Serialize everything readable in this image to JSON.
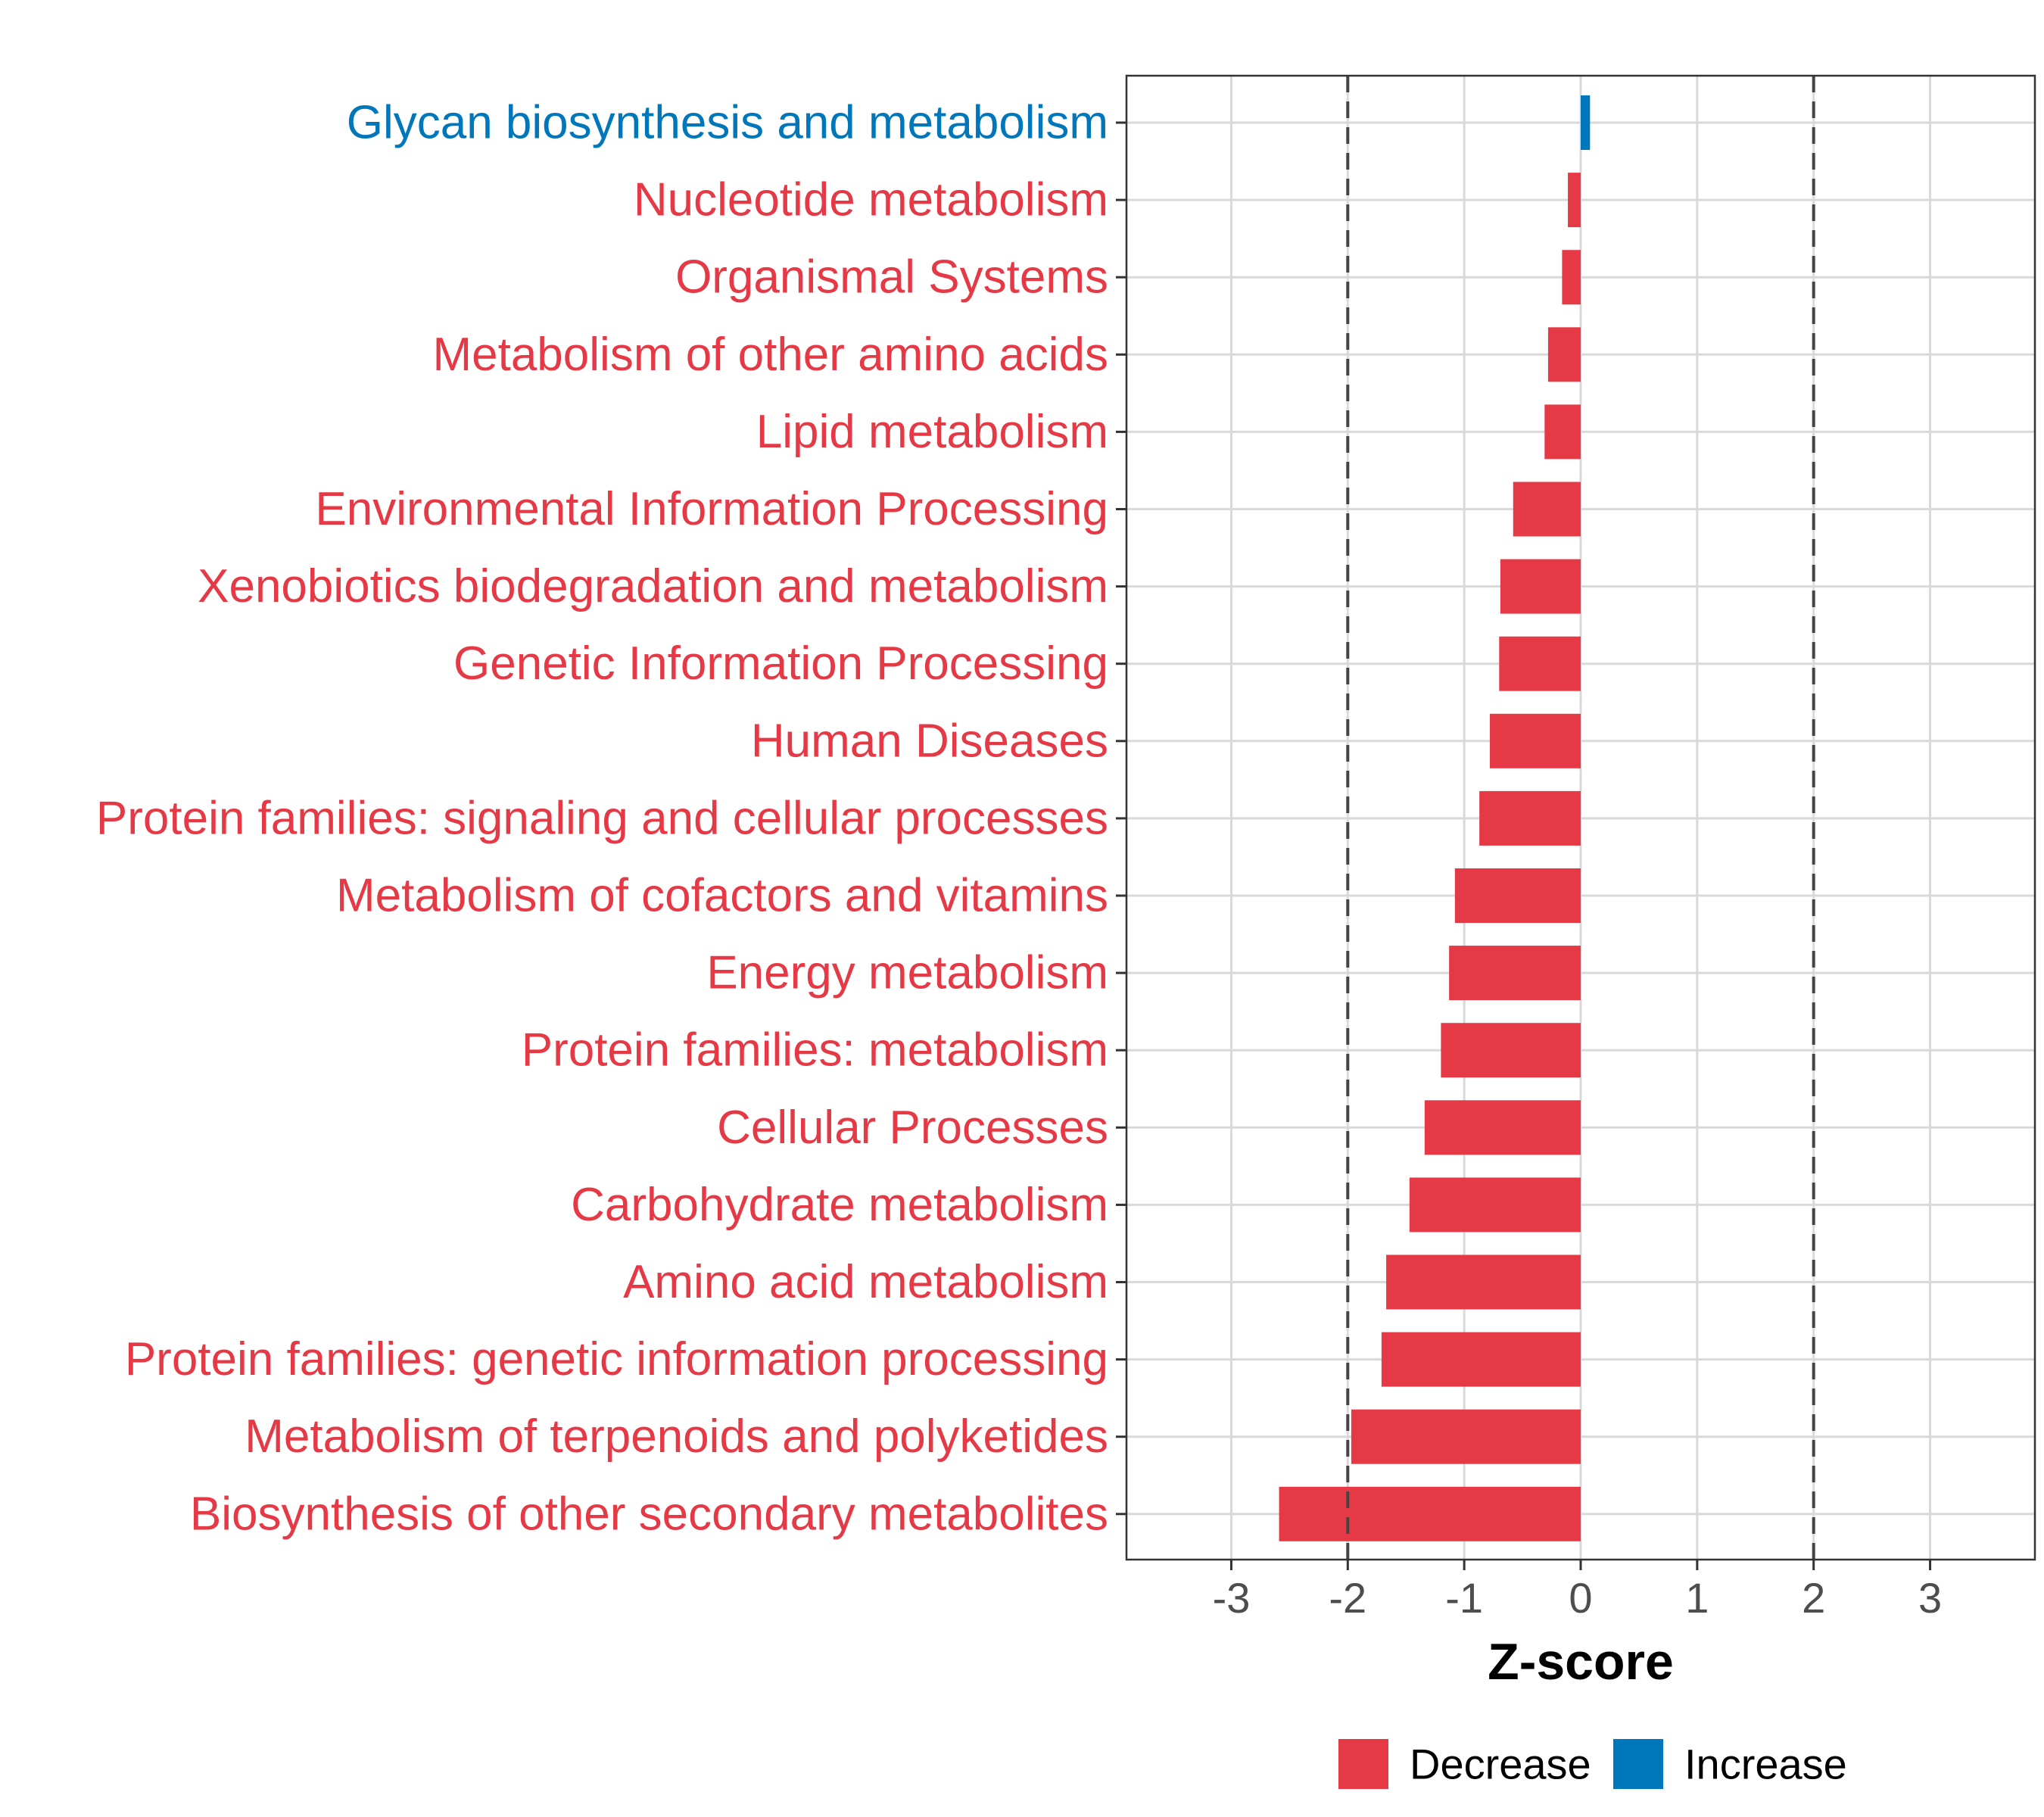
{
  "chart_data": {
    "type": "bar",
    "orientation": "horizontal",
    "xlabel": "Z-score",
    "xlim": [
      -3.9,
      3.9
    ],
    "xticks": [
      -3,
      -2,
      -1,
      0,
      1,
      2,
      3
    ],
    "tick_labels": [
      "-3",
      "-2",
      "-1",
      "0",
      "1",
      "2",
      "3"
    ],
    "reference_lines": [
      -2,
      2
    ],
    "grid": true,
    "categories": [
      "Glycan biosynthesis and metabolism",
      "Nucleotide metabolism",
      "Organismal Systems",
      "Metabolism of other amino acids",
      "Lipid metabolism",
      "Environmental Information Processing",
      "Xenobiotics biodegradation and metabolism",
      "Genetic Information Processing",
      "Human Diseases",
      "Protein families: signaling and cellular processes",
      "Metabolism of cofactors and vitamins",
      "Energy metabolism",
      "Protein families: metabolism",
      "Cellular Processes",
      "Carbohydrate metabolism",
      "Amino acid metabolism",
      "Protein families: genetic information processing",
      "Metabolism of terpenoids and polyketides",
      "Biosynthesis of other secondary metabolites"
    ],
    "values": [
      0.08,
      -0.11,
      -0.16,
      -0.28,
      -0.31,
      -0.58,
      -0.69,
      -0.7,
      -0.78,
      -0.87,
      -1.08,
      -1.13,
      -1.2,
      -1.34,
      -1.47,
      -1.67,
      -1.71,
      -1.97,
      -2.59
    ],
    "groups": [
      "Increase",
      "Decrease",
      "Decrease",
      "Decrease",
      "Decrease",
      "Decrease",
      "Decrease",
      "Decrease",
      "Decrease",
      "Decrease",
      "Decrease",
      "Decrease",
      "Decrease",
      "Decrease",
      "Decrease",
      "Decrease",
      "Decrease",
      "Decrease",
      "Decrease"
    ],
    "legend": {
      "position": "bottom",
      "entries": [
        {
          "label": "Decrease",
          "color": "#E63946"
        },
        {
          "label": "Increase",
          "color": "#0077BB"
        }
      ]
    },
    "colors": {
      "Decrease": "#E63946",
      "Increase": "#0077BB"
    }
  }
}
